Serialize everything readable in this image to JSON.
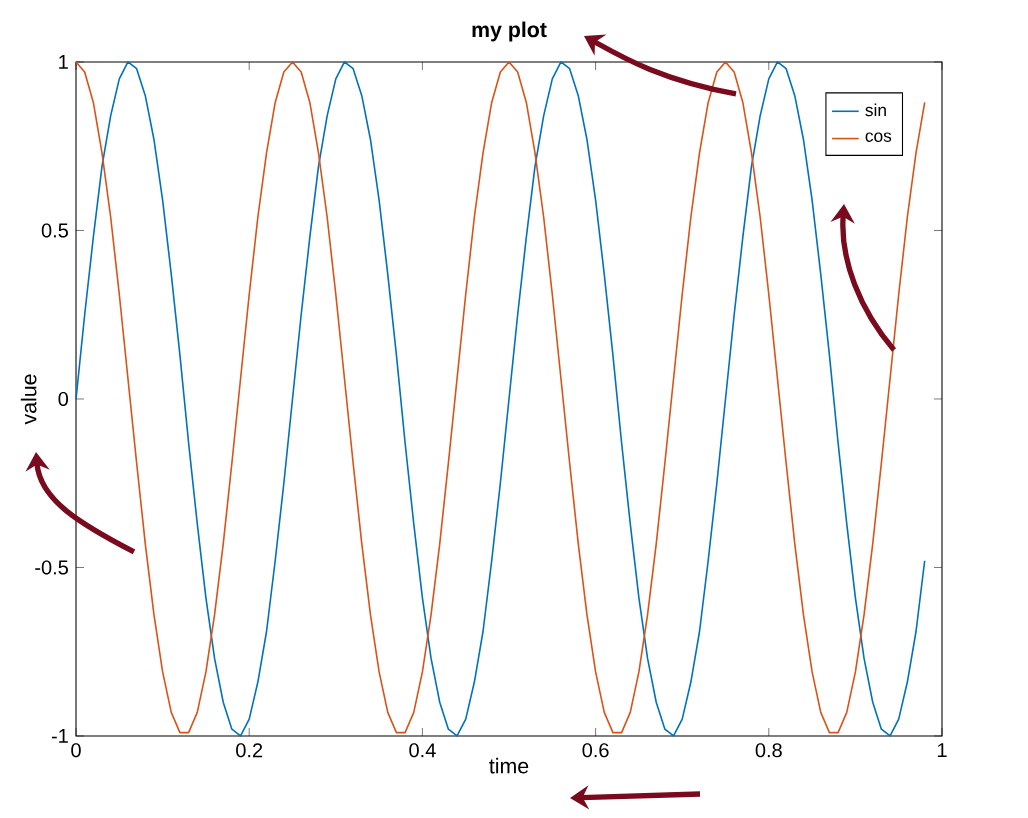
{
  "chart_data": {
    "type": "line",
    "title": "my plot",
    "xlabel": "time",
    "ylabel": "value",
    "x": [
      0,
      0.01,
      0.02,
      0.03,
      0.04,
      0.05,
      0.06,
      0.07,
      0.08,
      0.09,
      0.1,
      0.11,
      0.12,
      0.13,
      0.14,
      0.15,
      0.16,
      0.17,
      0.18,
      0.19,
      0.2,
      0.21,
      0.22,
      0.23,
      0.24,
      0.25,
      0.26,
      0.27,
      0.28,
      0.29,
      0.3,
      0.31,
      0.32,
      0.33,
      0.34,
      0.35,
      0.36,
      0.37,
      0.38,
      0.39,
      0.4,
      0.41,
      0.42,
      0.43,
      0.44,
      0.45,
      0.46,
      0.47,
      0.48,
      0.49,
      0.5,
      0.51,
      0.52,
      0.53,
      0.54,
      0.55,
      0.56,
      0.57,
      0.58,
      0.59,
      0.6,
      0.61,
      0.62,
      0.63,
      0.64,
      0.65,
      0.66,
      0.67,
      0.68,
      0.69,
      0.7,
      0.71,
      0.72,
      0.73,
      0.74,
      0.75,
      0.76,
      0.77,
      0.78,
      0.79,
      0.8,
      0.81,
      0.82,
      0.83,
      0.84,
      0.85,
      0.86,
      0.87,
      0.88,
      0.89,
      0.9,
      0.91,
      0.92,
      0.93,
      0.94,
      0.95,
      0.96,
      0.97,
      0.98
    ],
    "series": [
      {
        "name": "sin",
        "color": "#0072bd",
        "values": [
          0,
          0.25,
          0.48,
          0.69,
          0.84,
          0.95,
          1.0,
          0.98,
          0.9,
          0.77,
          0.59,
          0.37,
          0.13,
          -0.13,
          -0.37,
          -0.59,
          -0.77,
          -0.9,
          -0.98,
          -1.0,
          -0.95,
          -0.84,
          -0.69,
          -0.48,
          -0.25,
          0,
          0.25,
          0.48,
          0.69,
          0.84,
          0.95,
          1.0,
          0.98,
          0.9,
          0.77,
          0.59,
          0.37,
          0.13,
          -0.13,
          -0.37,
          -0.59,
          -0.77,
          -0.9,
          -0.98,
          -1.0,
          -0.95,
          -0.84,
          -0.69,
          -0.48,
          -0.25,
          0,
          0.25,
          0.48,
          0.69,
          0.84,
          0.95,
          1.0,
          0.98,
          0.9,
          0.77,
          0.59,
          0.37,
          0.13,
          -0.13,
          -0.37,
          -0.59,
          -0.77,
          -0.9,
          -0.98,
          -1.0,
          -0.95,
          -0.84,
          -0.69,
          -0.48,
          -0.25,
          0,
          0.25,
          0.48,
          0.69,
          0.84,
          0.95,
          1.0,
          0.98,
          0.9,
          0.77,
          0.59,
          0.37,
          0.13,
          -0.13,
          -0.37,
          -0.59,
          -0.77,
          -0.9,
          -0.98,
          -1.0,
          -0.95,
          -0.84,
          -0.69,
          -0.48
        ]
      },
      {
        "name": "cos",
        "color": "#d95319",
        "values": [
          1,
          0.97,
          0.88,
          0.73,
          0.54,
          0.31,
          0.06,
          -0.19,
          -0.43,
          -0.64,
          -0.81,
          -0.93,
          -0.99,
          -0.99,
          -0.93,
          -0.81,
          -0.64,
          -0.43,
          -0.19,
          0.06,
          0.31,
          0.54,
          0.73,
          0.88,
          0.97,
          1,
          0.97,
          0.88,
          0.73,
          0.54,
          0.31,
          0.06,
          -0.19,
          -0.43,
          -0.64,
          -0.81,
          -0.93,
          -0.99,
          -0.99,
          -0.93,
          -0.81,
          -0.64,
          -0.43,
          -0.19,
          0.06,
          0.31,
          0.54,
          0.73,
          0.88,
          0.97,
          1,
          0.97,
          0.88,
          0.73,
          0.54,
          0.31,
          0.06,
          -0.19,
          -0.43,
          -0.64,
          -0.81,
          -0.93,
          -0.99,
          -0.99,
          -0.93,
          -0.81,
          -0.64,
          -0.43,
          -0.19,
          0.06,
          0.31,
          0.54,
          0.73,
          0.88,
          0.97,
          1,
          0.97,
          0.88,
          0.73,
          0.54,
          0.31,
          0.06,
          -0.19,
          -0.43,
          -0.64,
          -0.81,
          -0.93,
          -0.99,
          -0.99,
          -0.93,
          -0.81,
          -0.64,
          -0.43,
          -0.19,
          0.06,
          0.31,
          0.54,
          0.73,
          0.88
        ]
      }
    ],
    "xlim": [
      0,
      1
    ],
    "ylim": [
      -1,
      1
    ],
    "xticks": [
      0,
      0.2,
      0.4,
      0.6,
      0.8,
      1
    ],
    "yticks": [
      -1,
      -0.5,
      0,
      0.5,
      1
    ],
    "grid": false,
    "legend": "top right",
    "line_style": "solid",
    "marker": "none"
  }
}
